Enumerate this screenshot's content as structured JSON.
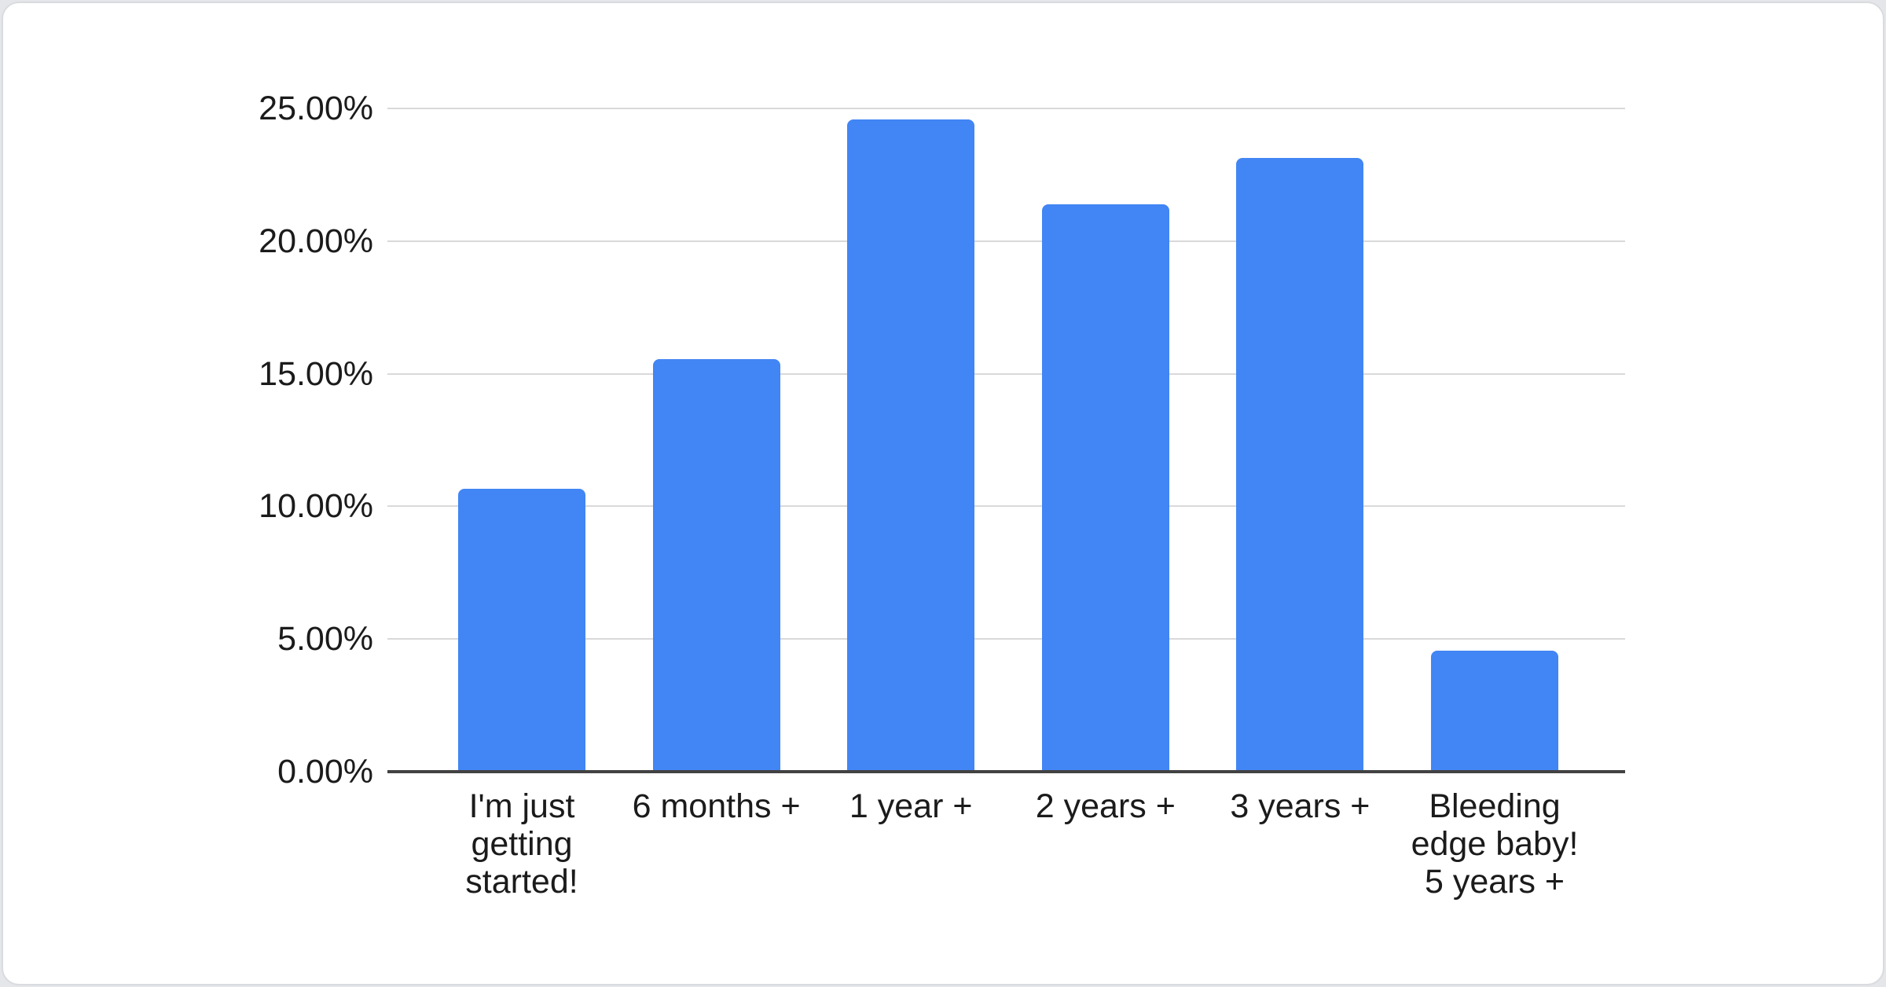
{
  "page": {
    "background": "#e4e6e9",
    "card_background": "#ffffff",
    "card_border": "#d9dbdf"
  },
  "chart_data": {
    "type": "bar",
    "title": "",
    "xlabel": "",
    "ylabel": "",
    "categories": [
      "I'm just\ngetting\nstarted!",
      "6 months +",
      "1 year +",
      "2 years +",
      "3 years +",
      "Bleeding\nedge baby!\n5 years +"
    ],
    "values": [
      10.66,
      15.55,
      24.58,
      21.39,
      23.13,
      4.56
    ],
    "value_unit": "percent",
    "ylim": [
      0,
      25
    ],
    "y_ticks": [
      {
        "value": 0,
        "label": "0.00%"
      },
      {
        "value": 5,
        "label": "5.00%"
      },
      {
        "value": 10,
        "label": "10.00%"
      },
      {
        "value": 15,
        "label": "15.00%"
      },
      {
        "value": 20,
        "label": "20.00%"
      },
      {
        "value": 25,
        "label": "25.00%"
      }
    ],
    "grid": true,
    "legend": "none",
    "bar_color": "#4285f4",
    "gridline_color": "#d9d9d9",
    "baseline_color": "#424242",
    "label_color": "#1b1b1b"
  }
}
